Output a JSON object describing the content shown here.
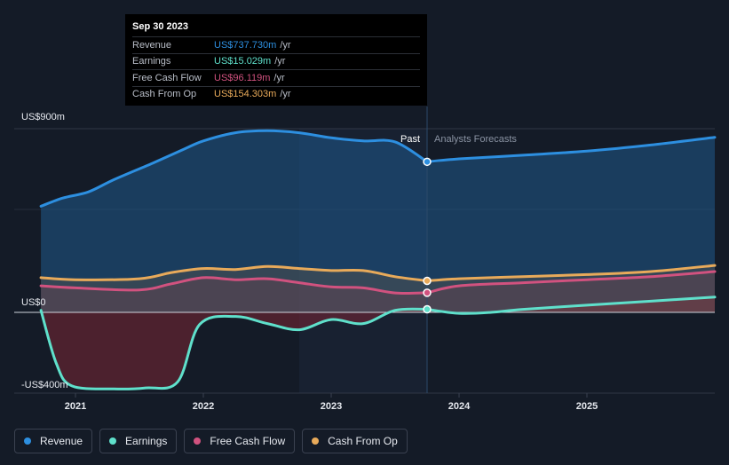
{
  "colors": {
    "revenue": "#2d8fe0",
    "earnings": "#5fe0cb",
    "free_cash_flow": "#d1527f",
    "cash_from_op": "#e8aa5a"
  },
  "tooltip": {
    "date": "Sep 30 2023",
    "rows": [
      {
        "name": "Revenue",
        "value": "US$737.730m",
        "unit": "/yr"
      },
      {
        "name": "Earnings",
        "value": "US$15.029m",
        "unit": "/yr"
      },
      {
        "name": "Free Cash Flow",
        "value": "US$96.119m",
        "unit": "/yr"
      },
      {
        "name": "Cash From Op",
        "value": "US$154.303m",
        "unit": "/yr"
      }
    ]
  },
  "labels": {
    "past": "Past",
    "forecast": "Analysts Forecasts"
  },
  "chart_data": {
    "type": "line",
    "title": "",
    "xlabel": "",
    "ylabel": "",
    "xlim": [
      2020.72,
      2026.0
    ],
    "ylim": [
      -400,
      900
    ],
    "y_ticks": [
      {
        "value": 900,
        "label": "US$900m"
      },
      {
        "value": 0,
        "label": "US$0"
      },
      {
        "value": -400,
        "label": "-US$400m"
      }
    ],
    "x_ticks": [
      {
        "value": 2021,
        "label": "2021"
      },
      {
        "value": 2022,
        "label": "2022"
      },
      {
        "value": 2023,
        "label": "2023"
      },
      {
        "value": 2024,
        "label": "2024"
      },
      {
        "value": 2025,
        "label": "2025"
      }
    ],
    "past_end": 2023.75,
    "highlight_start": 2022.75,
    "series": [
      {
        "name": "Revenue",
        "key": "revenue",
        "past": [
          [
            2020.73,
            520
          ],
          [
            2020.9,
            560
          ],
          [
            2021.1,
            590
          ],
          [
            2021.3,
            650
          ],
          [
            2021.6,
            730
          ],
          [
            2021.85,
            800
          ],
          [
            2022.0,
            840
          ],
          [
            2022.25,
            880
          ],
          [
            2022.5,
            890
          ],
          [
            2022.75,
            880
          ],
          [
            2023.0,
            855
          ],
          [
            2023.25,
            840
          ],
          [
            2023.5,
            835
          ],
          [
            2023.75,
            737.73
          ]
        ],
        "forecast": [
          [
            2023.75,
            737.73
          ],
          [
            2024.0,
            752
          ],
          [
            2024.5,
            770
          ],
          [
            2025.0,
            790
          ],
          [
            2025.5,
            820
          ],
          [
            2026.0,
            858
          ]
        ]
      },
      {
        "name": "Earnings",
        "key": "earnings",
        "past": [
          [
            2020.73,
            10
          ],
          [
            2020.85,
            -250
          ],
          [
            2020.97,
            -360
          ],
          [
            2021.3,
            -375
          ],
          [
            2021.55,
            -370
          ],
          [
            2021.8,
            -340
          ],
          [
            2021.97,
            -60
          ],
          [
            2022.25,
            -20
          ],
          [
            2022.5,
            -55
          ],
          [
            2022.75,
            -85
          ],
          [
            2023.0,
            -35
          ],
          [
            2023.25,
            -55
          ],
          [
            2023.5,
            10
          ],
          [
            2023.75,
            15.03
          ]
        ],
        "forecast": [
          [
            2023.75,
            15.03
          ],
          [
            2024.0,
            -5
          ],
          [
            2024.25,
            0
          ],
          [
            2024.5,
            15
          ],
          [
            2025.0,
            35
          ],
          [
            2025.5,
            55
          ],
          [
            2026.0,
            75
          ]
        ]
      },
      {
        "name": "Free Cash Flow",
        "key": "free_cash_flow",
        "past": [
          [
            2020.73,
            130
          ],
          [
            2021.0,
            120
          ],
          [
            2021.5,
            110
          ],
          [
            2021.75,
            140
          ],
          [
            2022.0,
            170
          ],
          [
            2022.25,
            160
          ],
          [
            2022.5,
            165
          ],
          [
            2022.75,
            145
          ],
          [
            2023.0,
            125
          ],
          [
            2023.25,
            120
          ],
          [
            2023.5,
            95
          ],
          [
            2023.75,
            96.12
          ]
        ],
        "forecast": [
          [
            2023.75,
            96.12
          ],
          [
            2024.0,
            130
          ],
          [
            2024.5,
            145
          ],
          [
            2025.0,
            160
          ],
          [
            2025.5,
            175
          ],
          [
            2026.0,
            200
          ]
        ]
      },
      {
        "name": "Cash From Op",
        "key": "cash_from_op",
        "past": [
          [
            2020.73,
            170
          ],
          [
            2021.0,
            160
          ],
          [
            2021.5,
            165
          ],
          [
            2021.75,
            195
          ],
          [
            2022.0,
            215
          ],
          [
            2022.25,
            210
          ],
          [
            2022.5,
            225
          ],
          [
            2022.75,
            215
          ],
          [
            2023.0,
            205
          ],
          [
            2023.25,
            205
          ],
          [
            2023.5,
            175
          ],
          [
            2023.75,
            154.3
          ]
        ],
        "forecast": [
          [
            2023.75,
            154.3
          ],
          [
            2024.0,
            165
          ],
          [
            2024.5,
            175
          ],
          [
            2025.0,
            185
          ],
          [
            2025.5,
            200
          ],
          [
            2026.0,
            230
          ]
        ]
      }
    ]
  },
  "legend": [
    {
      "label": "Revenue",
      "key": "revenue"
    },
    {
      "label": "Earnings",
      "key": "earnings"
    },
    {
      "label": "Free Cash Flow",
      "key": "free_cash_flow"
    },
    {
      "label": "Cash From Op",
      "key": "cash_from_op"
    }
  ]
}
